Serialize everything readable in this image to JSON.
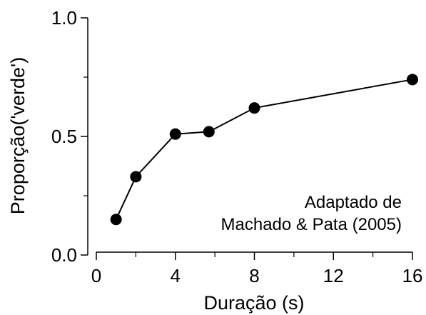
{
  "chart_data": {
    "type": "line",
    "title": "",
    "xlabel": "Duração (s)",
    "ylabel": "Proporção('verde')",
    "xlim": [
      0,
      16
    ],
    "ylim": [
      0,
      1
    ],
    "x_ticks": [
      0,
      4,
      8,
      12,
      16
    ],
    "x_tick_labels": [
      "0",
      "4",
      "8",
      "12",
      "16"
    ],
    "x_minor_ticks": [
      2,
      6,
      10,
      14
    ],
    "y_ticks": [
      0,
      0.5,
      1
    ],
    "y_tick_labels": [
      "0.0",
      "0.5",
      "1.0"
    ],
    "y_minor_ticks": [
      0.25,
      0.75
    ],
    "grid": false,
    "series": [
      {
        "x": [
          1,
          2,
          4,
          5.7,
          8,
          16
        ],
        "y": [
          0.15,
          0.33,
          0.51,
          0.52,
          0.62,
          0.74
        ],
        "color": "#000000",
        "marker": "filled-circle"
      }
    ],
    "annotation": [
      "Adaptado de",
      "Machado & Pata (2005)"
    ]
  }
}
